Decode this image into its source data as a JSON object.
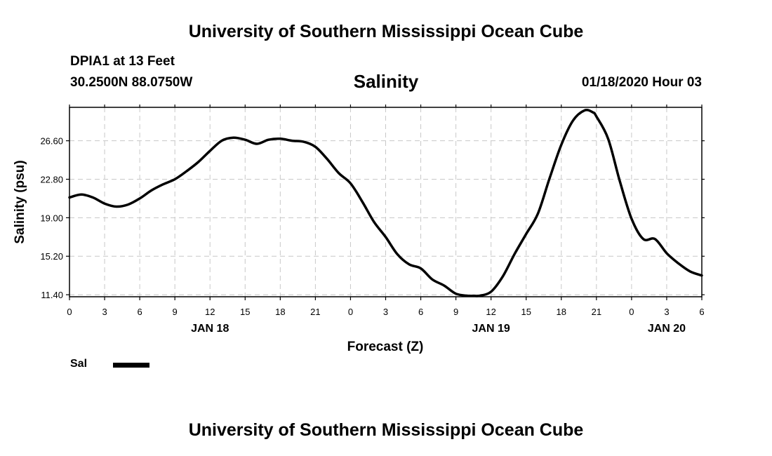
{
  "header": {
    "title": "University of Southern Mississippi Ocean Cube",
    "station": "DPIA1 at 13 Feet",
    "coords": "30.2500N 88.0750W",
    "chart_title": "Salinity",
    "datetime": "01/18/2020 Hour 03"
  },
  "footer": {
    "title": "University of Southern Mississippi Ocean Cube"
  },
  "legend": {
    "label": "Sal",
    "color": "#000000"
  },
  "chart_data": {
    "type": "line",
    "title": "Salinity",
    "xlabel": "Forecast (Z)",
    "ylabel": "Salinity (psu)",
    "ylim": [
      11.2,
      29.9
    ],
    "xlim": [
      0,
      54
    ],
    "yticks": [
      11.4,
      15.2,
      19.0,
      22.8,
      26.6
    ],
    "ytick_labels": [
      "11.40",
      "15.20",
      "19.00",
      "22.80",
      "26.60"
    ],
    "xticks": [
      0,
      3,
      6,
      9,
      12,
      15,
      18,
      21,
      24,
      27,
      30,
      33,
      36,
      39,
      42,
      45,
      48,
      51,
      54
    ],
    "xtick_labels": [
      "0",
      "3",
      "6",
      "9",
      "12",
      "15",
      "18",
      "21",
      "0",
      "3",
      "6",
      "9",
      "12",
      "15",
      "18",
      "21",
      "0",
      "3",
      "6"
    ],
    "date_labels": [
      {
        "hour": 12,
        "label": "JAN 18"
      },
      {
        "hour": 36,
        "label": "JAN 19"
      },
      {
        "hour": 51,
        "label": "JAN 20"
      }
    ],
    "grid": true,
    "series": [
      {
        "name": "Sal",
        "x": [
          0,
          1,
          2,
          3,
          4,
          5,
          6,
          7,
          8,
          9,
          10,
          11,
          12,
          13,
          14,
          15,
          16,
          17,
          18,
          19,
          20,
          21,
          22,
          23,
          24,
          25,
          26,
          27,
          28,
          29,
          30,
          31,
          32,
          33,
          34,
          34.5,
          35,
          36,
          37,
          38,
          39,
          40,
          41,
          42,
          43,
          44,
          44.7,
          45,
          46,
          47,
          48,
          49,
          50,
          51,
          52,
          53,
          54
        ],
        "values": [
          21.0,
          21.3,
          21.0,
          20.4,
          20.1,
          20.3,
          20.9,
          21.7,
          22.3,
          22.8,
          23.6,
          24.5,
          25.6,
          26.6,
          26.9,
          26.7,
          26.3,
          26.7,
          26.8,
          26.6,
          26.5,
          26.0,
          24.8,
          23.4,
          22.4,
          20.6,
          18.6,
          17.1,
          15.4,
          14.4,
          14.0,
          12.9,
          12.3,
          11.5,
          11.3,
          11.3,
          11.3,
          11.7,
          13.2,
          15.4,
          17.4,
          19.4,
          22.9,
          26.2,
          28.6,
          29.6,
          29.4,
          29.0,
          26.8,
          22.6,
          18.9,
          16.9,
          16.9,
          15.5,
          14.5,
          13.7,
          13.3
        ]
      }
    ],
    "legend_position": "bottom-left"
  }
}
